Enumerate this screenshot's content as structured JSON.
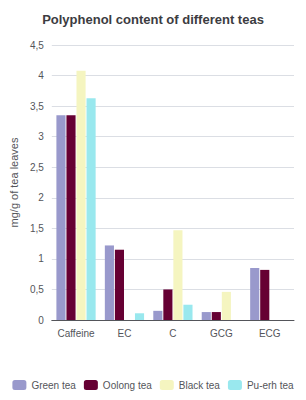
{
  "chart_data": {
    "type": "bar",
    "title": "Polyphenol content of different teas",
    "ylabel": "mg/g of tea leaves",
    "categories": [
      "Caffeine",
      "EC",
      "C",
      "GCG",
      "ECG"
    ],
    "series": [
      {
        "name": "Green tea",
        "color": "#9999cc",
        "values": [
          3.35,
          1.22,
          0.15,
          0.13,
          0.85
        ]
      },
      {
        "name": "Oolong tea",
        "color": "#660033",
        "values": [
          3.35,
          1.15,
          0.5,
          0.13,
          0.82
        ]
      },
      {
        "name": "Black tea",
        "color": "#f5f5c0",
        "values": [
          4.08,
          0.0,
          1.47,
          0.46,
          0.0
        ]
      },
      {
        "name": "Pu-erh tea",
        "color": "#99e8ee",
        "values": [
          3.63,
          0.11,
          0.25,
          0.0,
          0.0
        ]
      }
    ],
    "ylim": [
      0,
      4.5
    ],
    "yticks": [
      0,
      {
        "value": 0.5,
        "label": "0,5"
      },
      1,
      {
        "value": 1.5,
        "label": "1,5"
      },
      2,
      {
        "value": 2.5,
        "label": "2,5"
      },
      3,
      {
        "value": 3.5,
        "label": "3,5"
      },
      4,
      {
        "value": 4.5,
        "label": "4,5"
      }
    ],
    "grid": true,
    "legend": "bottom"
  }
}
